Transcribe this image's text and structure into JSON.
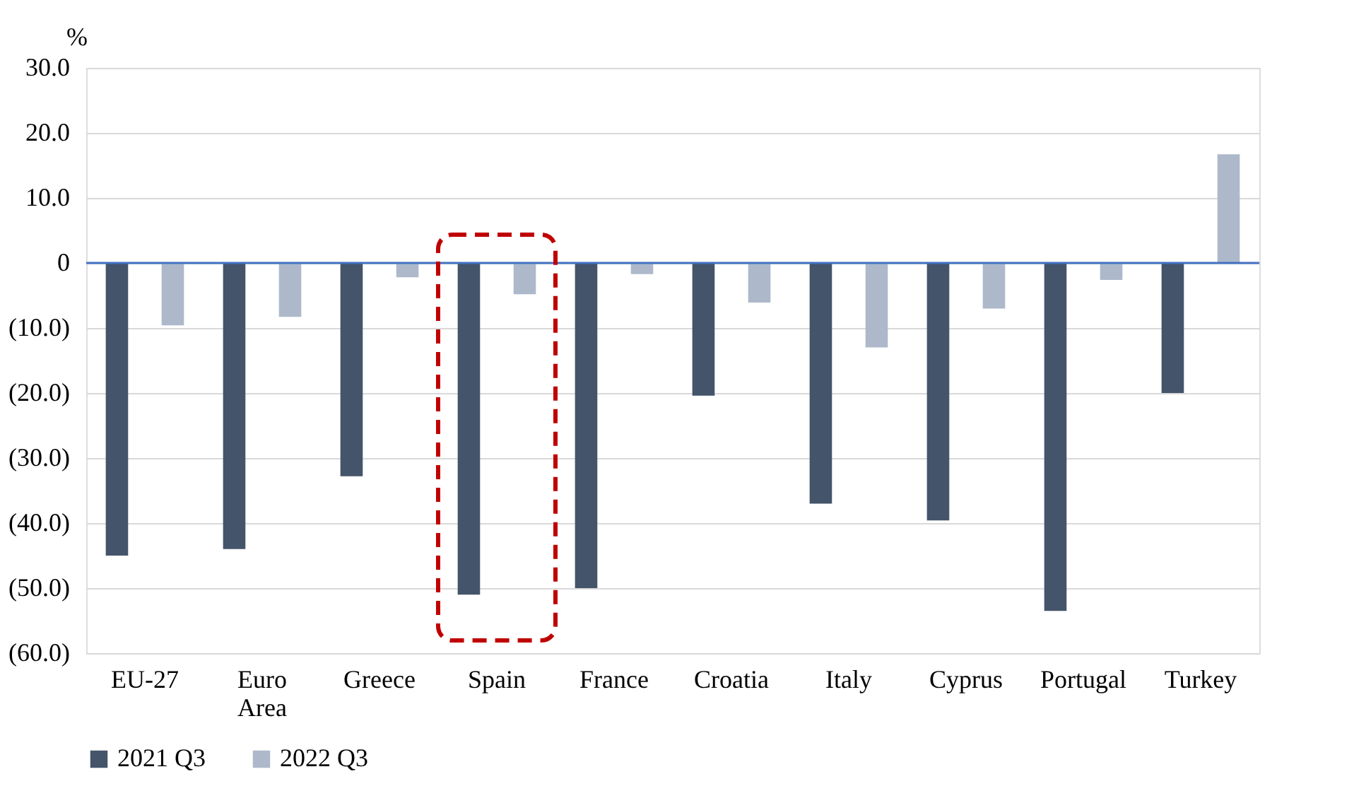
{
  "chart_data": {
    "type": "bar",
    "ylabel": "%",
    "categories": [
      "EU-27",
      "Euro Area",
      "Greece",
      "Spain",
      "France",
      "Croatia",
      "Italy",
      "Cyprus",
      "Portugal",
      "Turkey"
    ],
    "series": [
      {
        "name": "2021 Q3",
        "color": "#44546a",
        "values": [
          -45,
          -44,
          -32.8,
          -51,
          -50,
          -20.4,
          -37,
          -39.6,
          -53.5,
          -20
        ]
      },
      {
        "name": "2022 Q3",
        "color": "#adb9ca",
        "values": [
          -9.6,
          -8.3,
          -2.2,
          -4.8,
          -1.7,
          -6.1,
          -13,
          -7,
          -2.6,
          16.7
        ]
      }
    ],
    "ylim": [
      -60,
      30
    ],
    "yticks": [
      {
        "value": -60,
        "label": "(60.0)"
      },
      {
        "value": -50,
        "label": "(50.0)"
      },
      {
        "value": -40,
        "label": "(40.0)"
      },
      {
        "value": -30,
        "label": "(30.0)"
      },
      {
        "value": -20,
        "label": "(20.0)"
      },
      {
        "value": -10,
        "label": "(10.0)"
      },
      {
        "value": 0,
        "label": "0"
      },
      {
        "value": 10,
        "label": "10.0"
      },
      {
        "value": 20,
        "label": "20.0"
      },
      {
        "value": 30,
        "label": "30.0"
      }
    ],
    "ref_lines": [
      {
        "axis": "y",
        "value": 0,
        "color": "#4472c4"
      }
    ],
    "grid": "y",
    "legend": "bottom"
  }
}
